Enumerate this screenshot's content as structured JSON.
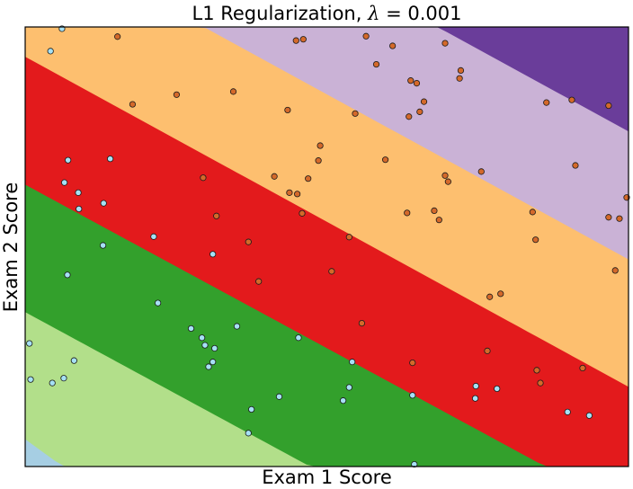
{
  "chart_data": {
    "type": "scatter",
    "title_text": "L1 Regularization, ",
    "title_symbol": "λ",
    "title_value": " = 0.001",
    "xlabel": "Exam 1 Score",
    "ylabel": "Exam 2 Score",
    "xlim": [
      0,
      100
    ],
    "ylim": [
      0,
      100
    ],
    "grid": false,
    "region_colors": [
      "#a6cee3",
      "#b2df8a",
      "#33a02c",
      "#e31a1c",
      "#fdbf6f",
      "#cab2d6",
      "#6a3d9a",
      "#b15928"
    ],
    "region_boundaries": [
      {
        "intercept": 6.3,
        "slope": -1.0
      },
      {
        "intercept": 35.2,
        "slope": -0.744
      },
      {
        "intercept": 64.2,
        "slope": -0.744
      },
      {
        "intercept": 93.3,
        "slope": -0.751
      },
      {
        "intercept": 122.3,
        "slope": -0.751
      },
      {
        "intercept": 151.4,
        "slope": -0.751
      },
      {
        "intercept": 180.3,
        "slope": -0.751
      }
    ],
    "series": [
      {
        "color": "#a6e1f5",
        "points": [
          [
            6.1,
            99.6
          ],
          [
            4.2,
            94.5
          ],
          [
            7.1,
            69.7
          ],
          [
            6.5,
            64.6
          ],
          [
            14.1,
            70.0
          ],
          [
            8.8,
            62.3
          ],
          [
            13.0,
            59.9
          ],
          [
            8.9,
            58.6
          ],
          [
            21.3,
            52.3
          ],
          [
            12.9,
            50.3
          ],
          [
            7.0,
            43.6
          ],
          [
            31.1,
            48.3
          ],
          [
            22.0,
            37.2
          ],
          [
            0.7,
            28.0
          ],
          [
            8.1,
            24.1
          ],
          [
            0.9,
            19.8
          ],
          [
            4.5,
            19.0
          ],
          [
            6.4,
            20.1
          ],
          [
            27.5,
            31.4
          ],
          [
            29.3,
            29.3
          ],
          [
            29.8,
            27.6
          ],
          [
            31.4,
            26.9
          ],
          [
            31.1,
            23.8
          ],
          [
            30.4,
            22.7
          ],
          [
            35.1,
            31.9
          ],
          [
            45.3,
            29.3
          ],
          [
            42.1,
            15.9
          ],
          [
            37.5,
            13.0
          ],
          [
            37.0,
            7.6
          ],
          [
            54.2,
            23.8
          ],
          [
            53.7,
            18.0
          ],
          [
            52.7,
            15.0
          ],
          [
            64.2,
            16.2
          ],
          [
            64.5,
            0.5
          ],
          [
            74.7,
            18.3
          ],
          [
            74.6,
            15.5
          ],
          [
            78.2,
            17.7
          ],
          [
            89.9,
            12.4
          ],
          [
            93.5,
            11.6
          ]
        ]
      },
      {
        "color": "#d4692a",
        "points": [
          [
            15.3,
            97.8
          ],
          [
            44.9,
            96.9
          ],
          [
            46.1,
            97.2
          ],
          [
            56.5,
            97.9
          ],
          [
            60.9,
            95.7
          ],
          [
            69.6,
            96.3
          ],
          [
            58.2,
            91.5
          ],
          [
            72.2,
            90.1
          ],
          [
            72.0,
            88.3
          ],
          [
            63.9,
            87.8
          ],
          [
            64.9,
            87.2
          ],
          [
            25.1,
            84.6
          ],
          [
            34.5,
            85.3
          ],
          [
            17.8,
            82.4
          ],
          [
            43.5,
            81.1
          ],
          [
            54.7,
            80.3
          ],
          [
            63.6,
            79.6
          ],
          [
            65.4,
            80.7
          ],
          [
            66.1,
            83.0
          ],
          [
            90.6,
            83.4
          ],
          [
            86.4,
            82.8
          ],
          [
            96.7,
            82.1
          ],
          [
            48.9,
            73.0
          ],
          [
            48.6,
            69.6
          ],
          [
            59.7,
            69.8
          ],
          [
            91.2,
            68.5
          ],
          [
            29.5,
            65.7
          ],
          [
            41.3,
            66.0
          ],
          [
            46.9,
            65.5
          ],
          [
            69.6,
            66.2
          ],
          [
            70.1,
            64.8
          ],
          [
            75.6,
            67.1
          ],
          [
            43.8,
            62.3
          ],
          [
            45.1,
            62.0
          ],
          [
            31.7,
            57.0
          ],
          [
            45.9,
            57.6
          ],
          [
            63.3,
            57.7
          ],
          [
            67.8,
            58.2
          ],
          [
            68.6,
            56.1
          ],
          [
            84.1,
            57.9
          ],
          [
            96.7,
            56.7
          ],
          [
            98.5,
            56.4
          ],
          [
            99.7,
            61.2
          ],
          [
            84.6,
            51.6
          ],
          [
            37.0,
            51.1
          ],
          [
            53.7,
            52.2
          ],
          [
            50.8,
            44.4
          ],
          [
            38.7,
            42.1
          ],
          [
            97.8,
            44.6
          ],
          [
            77.0,
            38.6
          ],
          [
            78.8,
            39.3
          ],
          [
            55.8,
            32.6
          ],
          [
            76.6,
            26.3
          ],
          [
            64.2,
            23.6
          ],
          [
            84.8,
            21.9
          ],
          [
            85.4,
            19.0
          ],
          [
            92.4,
            22.4
          ]
        ]
      }
    ]
  }
}
